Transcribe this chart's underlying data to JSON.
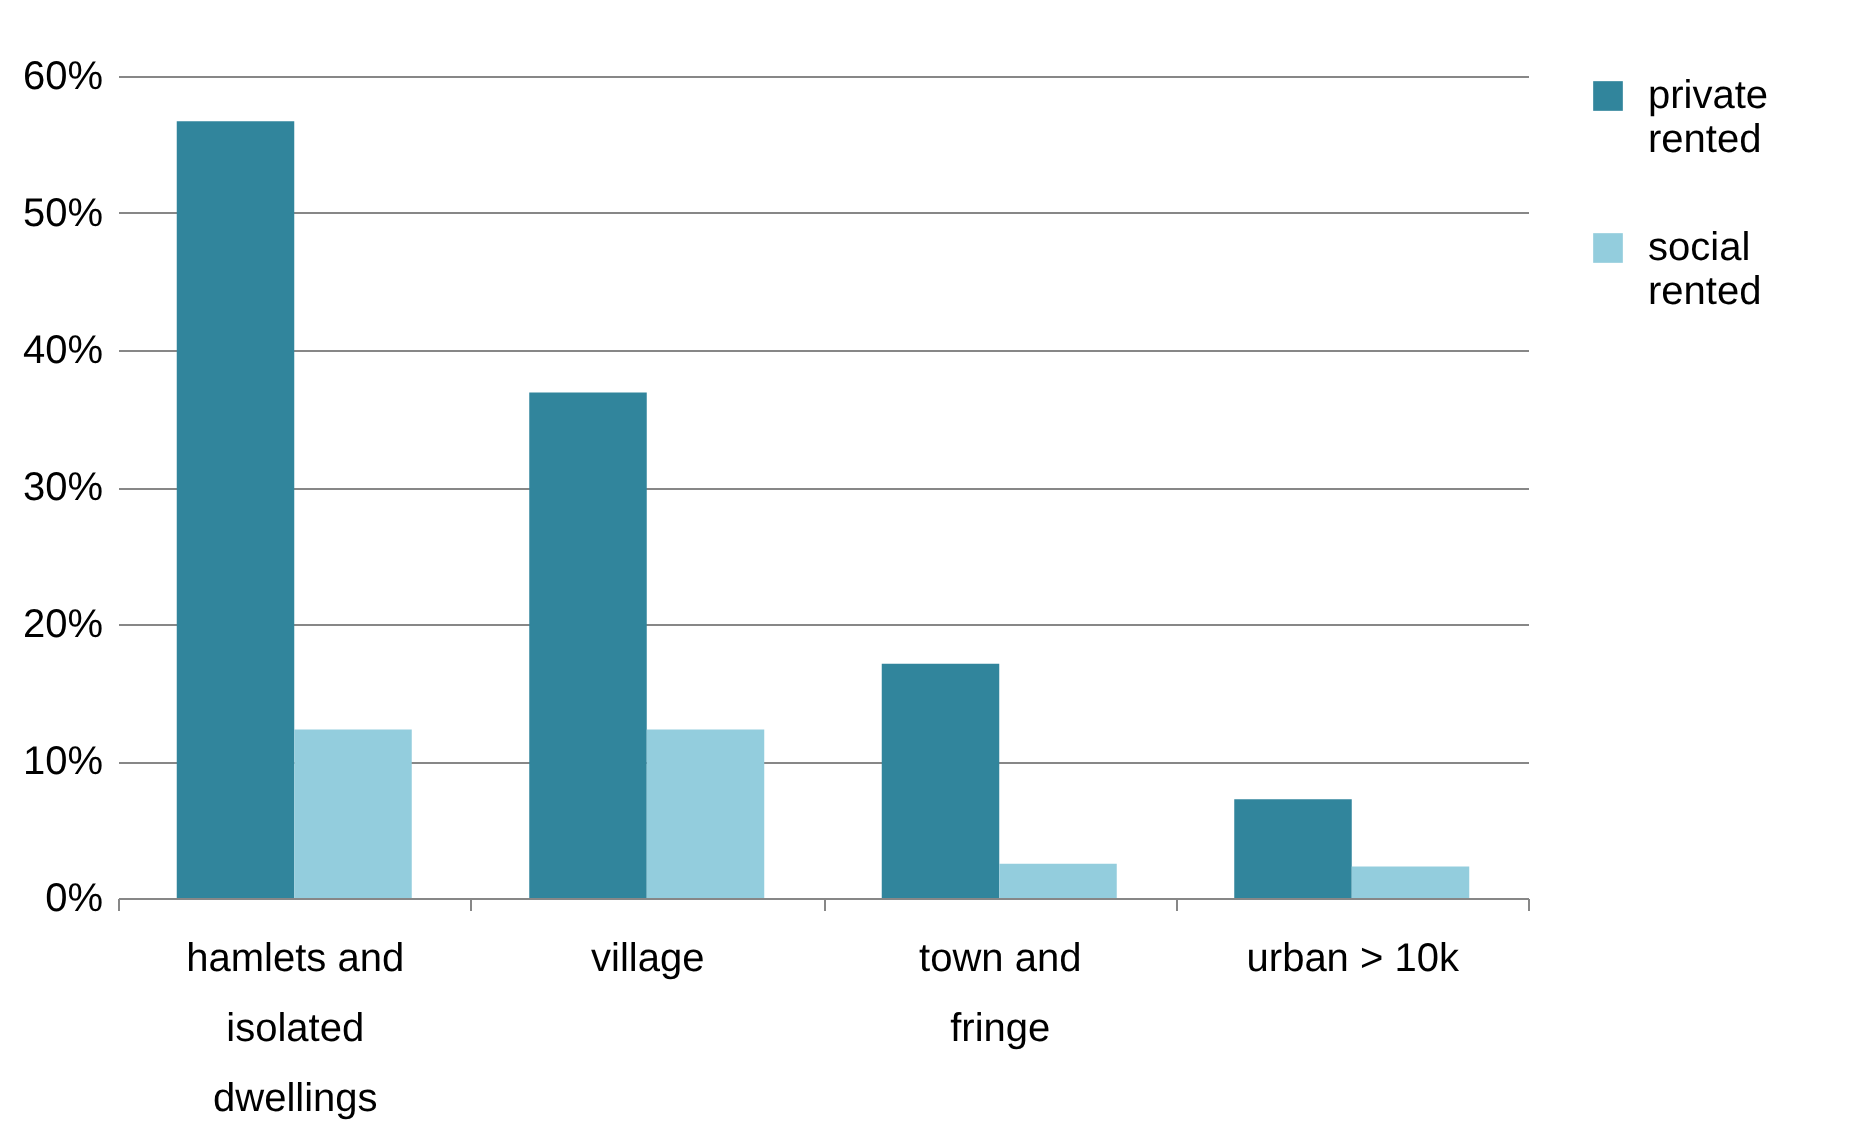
{
  "chart_data": {
    "type": "bar",
    "categories": [
      "hamlets and isolated dwellings",
      "village",
      "town and fringe",
      "urban > 10k"
    ],
    "series": [
      {
        "name": "private rented",
        "color": "#31859c",
        "values": [
          56.7,
          36.9,
          17.1,
          7.2
        ]
      },
      {
        "name": "social rented",
        "color": "#93cddd",
        "values": [
          12.3,
          12.3,
          2.5,
          2.3
        ]
      }
    ],
    "ylim": [
      0,
      60
    ],
    "yticks": [
      {
        "value": 0,
        "label": "0%"
      },
      {
        "value": 10,
        "label": "10%"
      },
      {
        "value": 20,
        "label": "20%"
      },
      {
        "value": 30,
        "label": "30%"
      },
      {
        "value": 40,
        "label": "40%"
      },
      {
        "value": 50,
        "label": "50%"
      },
      {
        "value": 60,
        "label": "60%"
      }
    ],
    "grid": "y",
    "legend": "right"
  }
}
